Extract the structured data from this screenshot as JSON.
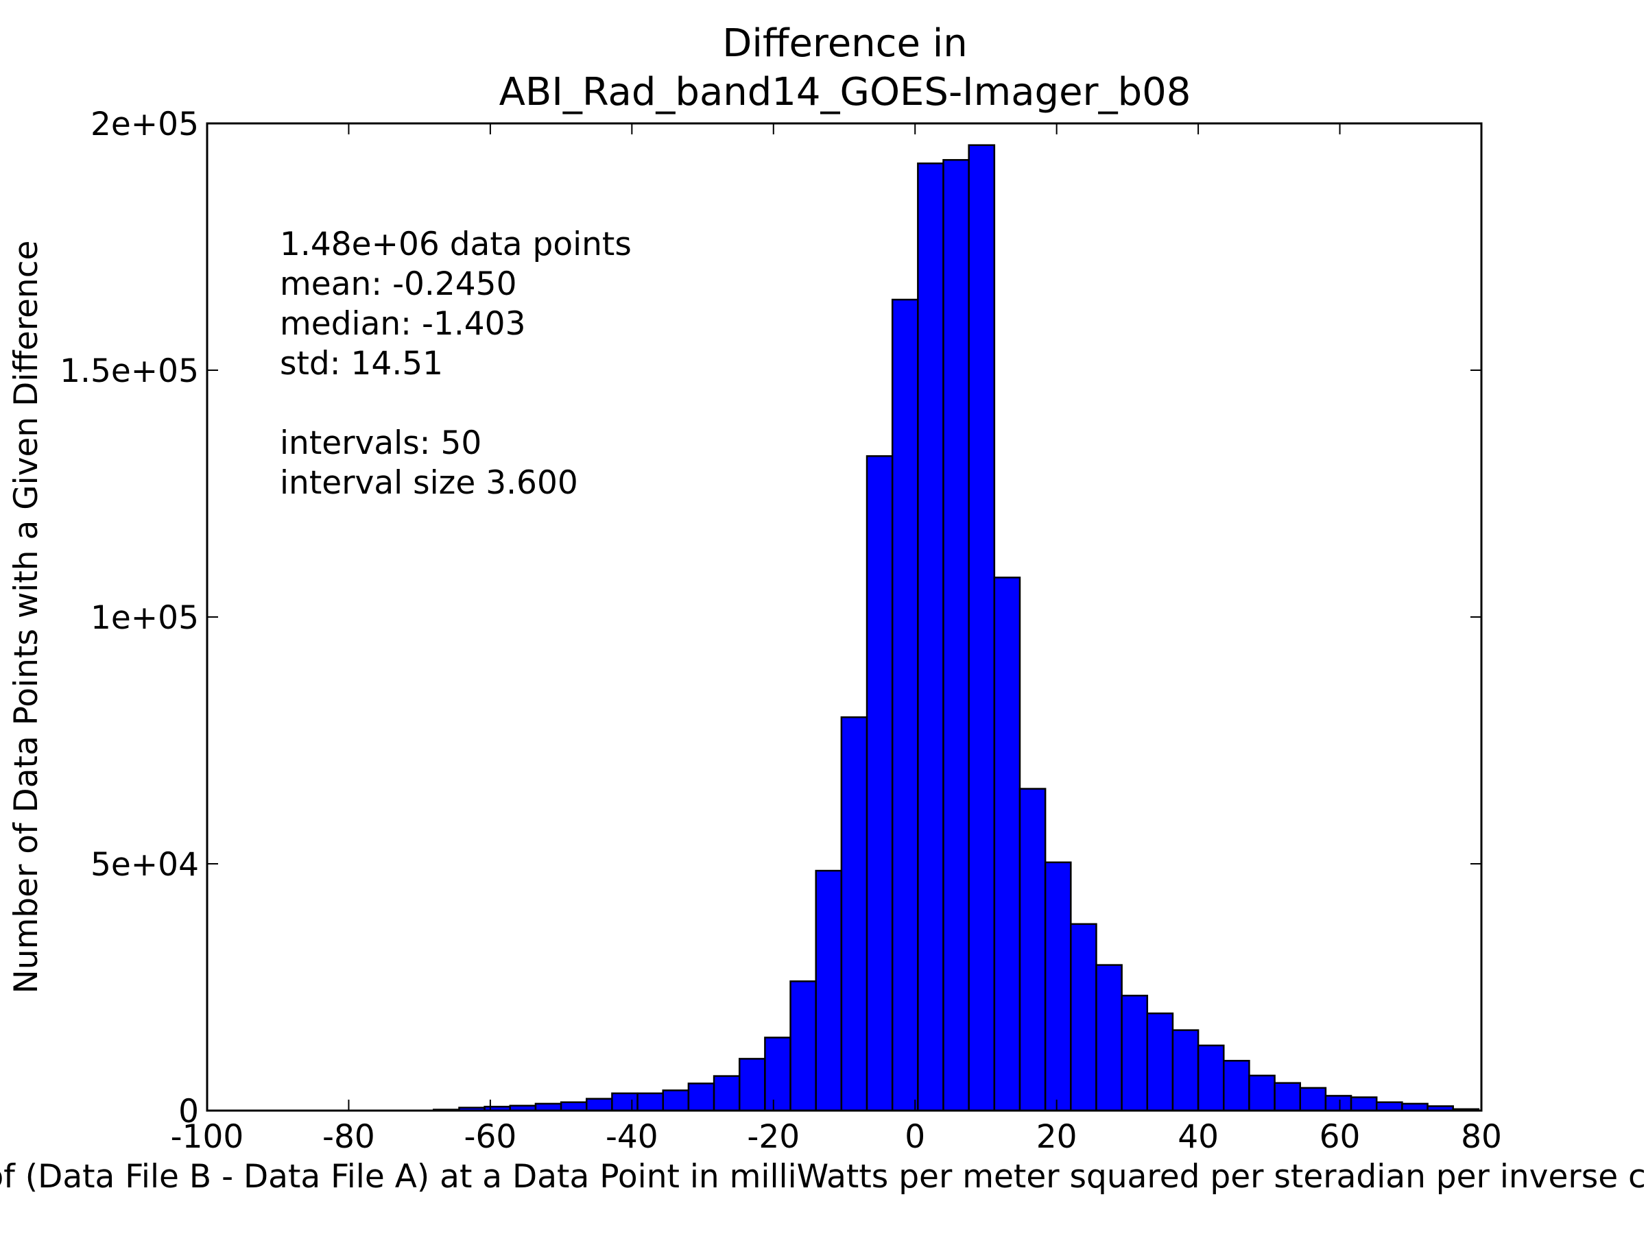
{
  "chart_data": {
    "type": "bar",
    "title_lines": [
      "Difference in",
      "ABI_Rad_band14_GOES-Imager_b08"
    ],
    "xlabel": "Value of (Data File B - Data File A) at a Data Point in milliWatts per meter squared per steradian per inverse centimeter",
    "ylabel": "Number of Data Points with a Given Difference",
    "xlim": [
      -100,
      80
    ],
    "ylim": [
      0,
      200000
    ],
    "x_ticks": [
      -100,
      -80,
      -60,
      -40,
      -20,
      0,
      20,
      40,
      60,
      80
    ],
    "x_tick_labels": [
      "-100",
      "-80",
      "-60",
      "-40",
      "-20",
      "0",
      "20",
      "40",
      "60",
      "80"
    ],
    "y_ticks": [
      0,
      50000,
      100000,
      150000,
      200000
    ],
    "y_tick_labels": [
      "0",
      "5e+04",
      "1e+05",
      "1.5e+05",
      "2e+05"
    ],
    "grid": false,
    "bar_color": "#0000ff",
    "bar_edge_color": "#000000",
    "annotation_lines": [
      "1.48e+06 data points",
      "mean: -0.2450",
      "median: -1.403",
      "std: 14.51",
      "",
      "intervals: 50",
      "interval size 3.600"
    ],
    "bin_edges_start": -114.8,
    "bin_width": 3.6,
    "values": [
      0,
      0,
      0,
      0,
      0,
      0,
      0,
      0,
      0,
      0,
      0,
      0,
      0,
      200,
      600,
      800,
      1000,
      1400,
      1700,
      2400,
      3500,
      3500,
      4100,
      5500,
      7000,
      10500,
      14800,
      26200,
      48600,
      79700,
      132600,
      164300,
      191900,
      192600,
      195600,
      108000,
      65200,
      50300,
      37800,
      29500,
      23300,
      19700,
      16300,
      13200,
      10100,
      7100,
      5600,
      4600,
      3000,
      2700,
      1700,
      1400,
      900,
      300
    ]
  }
}
